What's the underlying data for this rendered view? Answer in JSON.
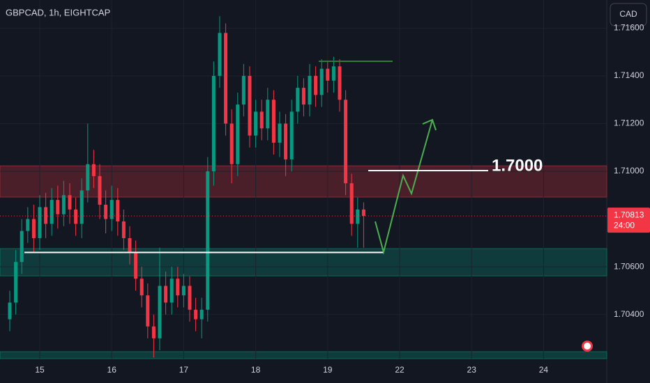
{
  "chart_data": {
    "type": "candlestick",
    "title": "GBPCAD, 1h, EIGHTCAP",
    "currency": "CAD",
    "categories": [
      null,
      null,
      null,
      null,
      null,
      "15",
      null,
      null,
      null,
      null,
      null,
      null,
      null,
      null,
      null,
      null,
      null,
      "16",
      null,
      null,
      null,
      null,
      null,
      null,
      null,
      null,
      null,
      null,
      null,
      "17",
      null,
      null,
      null,
      null,
      null,
      null,
      null,
      null,
      null,
      null,
      null,
      "18",
      null,
      null,
      null,
      null,
      null,
      null,
      null,
      null,
      null,
      null,
      null,
      "19",
      null,
      null,
      null,
      null,
      null,
      null
    ],
    "future_categories": [
      "22",
      "23",
      "24"
    ],
    "open": [
      1.7038,
      1.7045,
      1.7062,
      1.7075,
      1.708,
      1.7072,
      1.7085,
      1.7078,
      1.7088,
      1.7082,
      1.709,
      1.7084,
      1.7078,
      1.7092,
      1.7103,
      1.7098,
      1.7086,
      1.708,
      1.7088,
      1.7079,
      1.7072,
      1.7066,
      1.7055,
      1.7048,
      1.7035,
      1.703,
      1.7052,
      1.7045,
      1.7055,
      1.7048,
      1.7052,
      1.7042,
      1.7038,
      1.7042,
      1.71,
      1.714,
      1.7158,
      1.712,
      1.7103,
      1.7128,
      1.714,
      1.7115,
      1.7125,
      1.7118,
      1.713,
      1.7112,
      1.712,
      1.7105,
      1.7125,
      1.7135,
      1.7128,
      1.714,
      1.7132,
      1.7143,
      1.7138,
      1.7144,
      1.713,
      1.7095,
      1.7078,
      1.7084
    ],
    "high": [
      1.705,
      1.7067,
      1.708,
      1.7085,
      1.7086,
      1.709,
      1.7091,
      1.7093,
      1.7094,
      1.7096,
      1.7095,
      1.7089,
      1.7097,
      1.712,
      1.7109,
      1.7103,
      1.7092,
      1.7094,
      1.7093,
      1.7084,
      1.7077,
      1.7071,
      1.706,
      1.7053,
      1.704,
      1.7068,
      1.7058,
      1.706,
      1.706,
      1.7057,
      1.7056,
      1.7047,
      1.7047,
      1.7106,
      1.7146,
      1.7165,
      1.7162,
      1.7126,
      1.7133,
      1.7145,
      1.7144,
      1.713,
      1.713,
      1.7135,
      1.7134,
      1.7125,
      1.7124,
      1.713,
      1.714,
      1.7139,
      1.7145,
      1.7144,
      1.7147,
      1.7146,
      1.7148,
      1.7147,
      1.7134,
      1.7099,
      1.7089,
      1.7087
    ],
    "low": [
      1.7033,
      1.704,
      1.7057,
      1.707,
      1.7066,
      1.7067,
      1.7072,
      1.7073,
      1.7076,
      1.7077,
      1.7078,
      1.7073,
      1.7072,
      1.7087,
      1.7093,
      1.708,
      1.7074,
      1.7075,
      1.7073,
      1.7067,
      1.7061,
      1.705,
      1.7043,
      1.703,
      1.7022,
      1.7025,
      1.704,
      1.704,
      1.7043,
      1.7043,
      1.7037,
      1.7033,
      1.703,
      1.7037,
      1.7094,
      1.7135,
      1.7115,
      1.7095,
      1.7098,
      1.7123,
      1.711,
      1.711,
      1.7113,
      1.7113,
      1.7107,
      1.7106,
      1.7098,
      1.71,
      1.712,
      1.7123,
      1.7123,
      1.7127,
      1.7127,
      1.7133,
      1.7133,
      1.7125,
      1.709,
      1.7073,
      1.7068,
      1.7068
    ],
    "close": [
      1.7045,
      1.7062,
      1.7075,
      1.708,
      1.7072,
      1.7085,
      1.7078,
      1.7088,
      1.7082,
      1.709,
      1.7084,
      1.7078,
      1.7092,
      1.7103,
      1.7098,
      1.7086,
      1.708,
      1.7088,
      1.7079,
      1.7072,
      1.7066,
      1.7055,
      1.7048,
      1.7035,
      1.703,
      1.7052,
      1.7045,
      1.7055,
      1.7048,
      1.7052,
      1.7042,
      1.7038,
      1.7042,
      1.71,
      1.714,
      1.7158,
      1.712,
      1.7103,
      1.7128,
      1.714,
      1.7115,
      1.7125,
      1.7118,
      1.713,
      1.7112,
      1.712,
      1.7105,
      1.7125,
      1.7135,
      1.7128,
      1.714,
      1.7132,
      1.7143,
      1.7138,
      1.7144,
      1.713,
      1.7095,
      1.7078,
      1.7084,
      1.70813
    ],
    "up_color": "#089981",
    "down_color": "#f23645",
    "ylim": [
      1.70215,
      1.71718
    ],
    "yticks": [
      {
        "value": 1.704,
        "label": "1.70400"
      },
      {
        "value": 1.706,
        "label": "1.70600"
      },
      {
        "value": 1.71,
        "label": "1.71000"
      },
      {
        "value": 1.712,
        "label": "1.71200"
      },
      {
        "value": 1.714,
        "label": "1.71400"
      },
      {
        "value": 1.716,
        "label": "1.71600"
      }
    ],
    "grid": true,
    "last_price": {
      "value": 1.70813,
      "label": "1.70813"
    },
    "countdown": "24:00",
    "resistance_zone": [
      1.70892,
      1.71023
    ],
    "support_zone": [
      1.70562,
      1.70676
    ],
    "lower_zone": [
      1.70215,
      1.70244
    ],
    "support_line": 1.7066,
    "target_annotation": "1.7000"
  }
}
